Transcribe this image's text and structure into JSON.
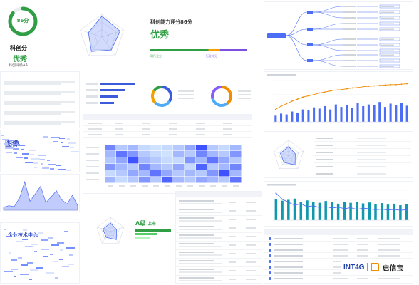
{
  "score": {
    "value": "86分",
    "progress": 0.86,
    "label": "科创分",
    "grade": "优秀",
    "grade_sub": "科创评级AA"
  },
  "radar_top": {
    "labels": [
      "",
      "",
      "",
      "",
      ""
    ],
    "levels": [
      0.92,
      0.84,
      0.7,
      0.78,
      0.62
    ]
  },
  "summary": {
    "title": "科创能力评分86分",
    "grade": "优秀",
    "desc": "",
    "legend": [
      "同行业分",
      "",
      "行业均分"
    ],
    "highlight_color": "#7b4fe0"
  },
  "list_panel": {
    "items": [
      {
        "title": "",
        "text": ""
      },
      {
        "title": "",
        "text": ""
      },
      {
        "title": "",
        "text": ""
      },
      {
        "title": "",
        "text": ""
      },
      {
        "title": "",
        "text": ""
      }
    ]
  },
  "bar_list": {
    "title": "",
    "bars": [
      0.8,
      0.58,
      0.4,
      0.32
    ]
  },
  "donut1": {
    "segments": [
      0.34,
      0.28,
      0.22,
      0.16
    ],
    "colors": [
      "#3b5bdb",
      "#4dabf7",
      "#f59f00",
      "#2f9e44"
    ]
  },
  "donut2": {
    "segments": [
      0.4,
      0.3,
      0.3
    ],
    "colors": [
      "#f08c00",
      "#4dabf7",
      "#845ef7"
    ]
  },
  "wordcloud": {
    "words": [
      {
        "text": "图像",
        "size": 10,
        "color": "#364fc7"
      },
      {
        "text": "",
        "size": 7,
        "color": "#4263eb"
      },
      {
        "text": "",
        "size": 6,
        "color": "#5c7cfa"
      },
      {
        "text": "",
        "size": 6,
        "color": "#91a7ff"
      },
      {
        "text": "",
        "size": 5,
        "color": "#748ffc"
      },
      {
        "text": "",
        "size": 5,
        "color": "#3b5bdb"
      }
    ]
  },
  "wordcloud2": {
    "words": [
      {
        "text": "企业技术中心",
        "size": 7,
        "color": "#364fc7"
      },
      {
        "text": "",
        "size": 6,
        "color": "#4263eb"
      },
      {
        "text": "",
        "size": 5,
        "color": "#5c7cfa"
      },
      {
        "text": "",
        "size": 5,
        "color": "#748ffc"
      },
      {
        "text": "",
        "size": 4,
        "color": "#91a7ff"
      }
    ]
  },
  "area_chart": {
    "values": [
      0.1,
      0.15,
      0.12,
      0.4,
      0.95,
      0.3,
      0.55,
      0.8,
      0.25,
      0.45,
      0.65,
      0.35,
      0.2,
      0.5,
      0.15
    ]
  },
  "heatmap": {
    "rows": 6,
    "cols": 12,
    "cells": [
      [
        0.6,
        0.2,
        0.3,
        0.1,
        0.05,
        0.1,
        0.2,
        0.4,
        0.9,
        0.2,
        0.1,
        0.3
      ],
      [
        0.3,
        0.7,
        0.5,
        0.2,
        0.1,
        0.05,
        0.3,
        0.2,
        0.6,
        0.3,
        0.2,
        0.5
      ],
      [
        0.2,
        0.4,
        0.9,
        0.3,
        0.2,
        0.1,
        0.1,
        0.5,
        0.3,
        0.7,
        0.4,
        0.2
      ],
      [
        0.5,
        0.3,
        0.2,
        0.6,
        0.3,
        0.2,
        0.4,
        0.1,
        0.8,
        0.2,
        0.3,
        0.6
      ],
      [
        0.1,
        0.2,
        0.4,
        0.3,
        0.7,
        0.4,
        0.2,
        0.3,
        0.2,
        0.5,
        0.9,
        0.3
      ],
      [
        0.3,
        0.1,
        0.2,
        0.5,
        0.2,
        0.8,
        0.3,
        0.2,
        0.4,
        0.3,
        0.2,
        0.7
      ]
    ]
  },
  "radar_small": {
    "levels": [
      0.6,
      0.45,
      0.7,
      0.5,
      0.55
    ]
  },
  "grade_card": {
    "title": "",
    "grade": "A级",
    "grade_label": "上市",
    "bars": [
      1.0,
      0.6,
      0.4
    ]
  },
  "tree": {
    "root": "",
    "branches": 4
  },
  "line_bar_chart": {
    "bars": [
      0.15,
      0.2,
      0.18,
      0.25,
      0.22,
      0.3,
      0.28,
      0.35,
      0.32,
      0.38,
      0.3,
      0.42,
      0.36,
      0.4,
      0.34,
      0.45,
      0.38,
      0.42,
      0.4,
      0.48,
      0.36,
      0.44,
      0.41,
      0.46,
      0.39
    ],
    "line": [
      0.3,
      0.38,
      0.44,
      0.5,
      0.55,
      0.6,
      0.63,
      0.66,
      0.7,
      0.72,
      0.75,
      0.77,
      0.78,
      0.8,
      0.82,
      0.83,
      0.85,
      0.86,
      0.87,
      0.88,
      0.89,
      0.9,
      0.9,
      0.91,
      0.92
    ]
  },
  "line_bar_chart2": {
    "bars": [
      0.7,
      0.65,
      0.68,
      0.72,
      0.6,
      0.66,
      0.62,
      0.58,
      0.64,
      0.6,
      0.55,
      0.62,
      0.58,
      0.6,
      0.56,
      0.59,
      0.54,
      0.57,
      0.52,
      0.55,
      0.5,
      0.53
    ],
    "line": [
      0.9,
      0.7,
      0.6,
      0.5,
      0.55,
      0.45,
      0.48,
      0.42,
      0.46,
      0.4,
      0.44,
      0.38,
      0.42,
      0.36,
      0.4,
      0.38,
      0.35,
      0.37,
      0.34,
      0.36,
      0.33,
      0.35
    ]
  },
  "tables": {
    "mid_rows": 7,
    "bottom_rows": 10
  },
  "brand": {
    "left": "INT4G",
    "right": "启信宝"
  }
}
